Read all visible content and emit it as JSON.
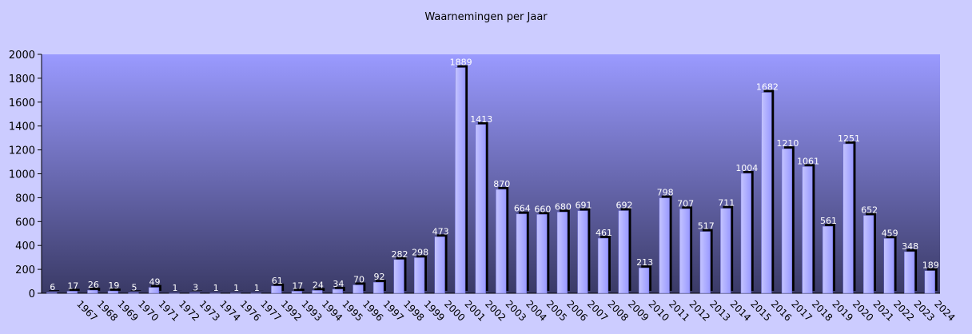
{
  "chart_data": {
    "type": "bar",
    "title": "Waarnemingen per Jaar",
    "xlabel": "",
    "ylabel": "",
    "ylim": [
      0,
      2000
    ],
    "yticks": [
      0,
      200,
      400,
      600,
      800,
      1000,
      1200,
      1400,
      1600,
      1800,
      2000
    ],
    "categories": [
      "",
      "1967",
      "1968",
      "1969",
      "1970",
      "1971",
      "1972",
      "1973",
      "1974",
      "1976",
      "1977",
      "1992",
      "1993",
      "1994",
      "1995",
      "1996",
      "1997",
      "1998",
      "1999",
      "2000",
      "2001",
      "2002",
      "2003",
      "2004",
      "2005",
      "2006",
      "2007",
      "2008",
      "2009",
      "2010",
      "2011",
      "2012",
      "2013",
      "2014",
      "2015",
      "2016",
      "2017",
      "2018",
      "2019",
      "2020",
      "2021",
      "2022",
      "2023",
      "2024"
    ],
    "values": [
      6,
      17,
      26,
      19,
      5,
      49,
      1,
      3,
      1,
      1,
      1,
      61,
      17,
      24,
      34,
      70,
      92,
      282,
      298,
      473,
      1889,
      1413,
      870,
      664,
      660,
      680,
      691,
      461,
      692,
      213,
      798,
      707,
      517,
      711,
      1004,
      1682,
      1210,
      1061,
      561,
      1251,
      652,
      459,
      348,
      189
    ],
    "grid": false,
    "legend": "none",
    "colors": {
      "page_background": "#ccccff",
      "plot_top": "#9a9aff",
      "plot_bottom": "#3a3a66",
      "bar_face": "#9999ff",
      "bar_highlight": "#c4c4ff",
      "bar_shadow": "#000000",
      "data_label": "#ffffff"
    }
  }
}
